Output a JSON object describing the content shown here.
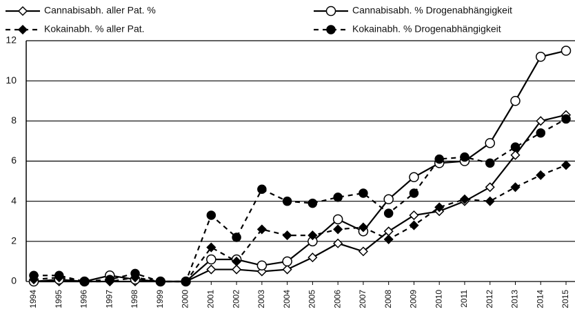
{
  "chart_data": {
    "type": "line",
    "categories": [
      "1994",
      "1995",
      "1996",
      "1997",
      "1998",
      "1999",
      "2000",
      "2001",
      "2002",
      "2003",
      "2004",
      "2005",
      "2006",
      "2007",
      "2008",
      "2009",
      "2010",
      "2011",
      "2012",
      "2013",
      "2014",
      "2015"
    ],
    "series": [
      {
        "name": "Cannabisabh. aller Pat. %",
        "color": "#000000",
        "dash": false,
        "marker": "diamond-open",
        "values": [
          0,
          0,
          0,
          0,
          0,
          0,
          0,
          0.6,
          0.6,
          0.5,
          0.6,
          1.2,
          1.9,
          1.5,
          2.5,
          3.3,
          3.5,
          4.0,
          4.7,
          6.3,
          8.0,
          8.3
        ]
      },
      {
        "name": "Cannabisabh. % Drogenabhängigkeit",
        "color": "#000000",
        "dash": false,
        "marker": "circle-open",
        "values": [
          0,
          0.1,
          0,
          0.3,
          0.1,
          0,
          0,
          1.1,
          1.1,
          0.8,
          1.0,
          2.0,
          3.1,
          2.5,
          4.1,
          5.2,
          5.9,
          6.0,
          6.9,
          9.0,
          11.2,
          11.5
        ]
      },
      {
        "name": "Kokainabh. % aller Pat.",
        "color": "#000000",
        "dash": true,
        "marker": "diamond-filled",
        "values": [
          0.1,
          0.2,
          0,
          0,
          0.2,
          0,
          0,
          1.7,
          1.0,
          2.6,
          2.3,
          2.3,
          2.6,
          2.7,
          2.1,
          2.8,
          3.7,
          4.1,
          4.0,
          4.7,
          5.3,
          5.8
        ]
      },
      {
        "name": "Kokainabh. % Drogenabhängigkeit",
        "color": "#000000",
        "dash": true,
        "marker": "circle-filled",
        "values": [
          0.3,
          0.3,
          0,
          0.1,
          0.4,
          0,
          0,
          3.3,
          2.2,
          4.6,
          4.0,
          3.9,
          4.2,
          4.4,
          3.4,
          4.4,
          6.1,
          6.2,
          5.9,
          6.7,
          7.4,
          8.1
        ]
      }
    ],
    "ylim": [
      0,
      12
    ],
    "yticks": [
      0,
      2,
      4,
      6,
      8,
      10,
      12
    ],
    "grid": true
  }
}
